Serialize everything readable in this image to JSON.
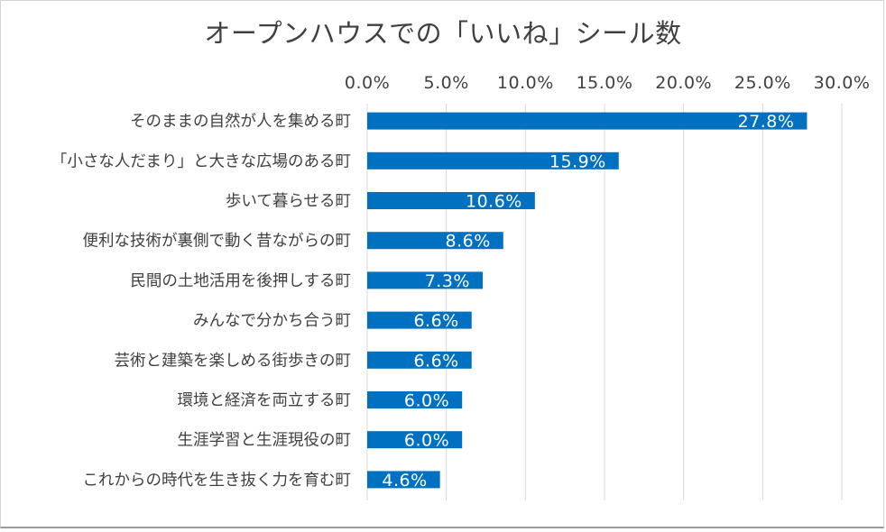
{
  "chart_data": {
    "type": "bar",
    "orientation": "horizontal",
    "title": "オープンハウスでの「いいね」シール数",
    "xlim": [
      0,
      30
    ],
    "x_ticks": [
      "0.0%",
      "5.0%",
      "10.0%",
      "15.0%",
      "20.0%",
      "25.0%",
      "30.0%"
    ],
    "x_tick_values": [
      0,
      5,
      10,
      15,
      20,
      25,
      30
    ],
    "x_axis_position": "top",
    "grid": true,
    "bar_color": "#0070c0",
    "categories": [
      "そのままの自然が人を集める町",
      "「小さな人だまり」と大きな広場のある町",
      "歩いて暮らせる町",
      "便利な技術が裏側で動く昔ながらの町",
      "民間の土地活用を後押しする町",
      "みんなで分かち合う町",
      "芸術と建築を楽しめる街歩きの町",
      "環境と経済を両立する町",
      "生涯学習と生涯現役の町",
      "これからの時代を生き抜く力を育む町"
    ],
    "values": [
      27.8,
      15.9,
      10.6,
      8.6,
      7.3,
      6.6,
      6.6,
      6.0,
      6.0,
      4.6
    ],
    "data_labels": [
      "27.8%",
      "15.9%",
      "10.6%",
      "8.6%",
      "7.3%",
      "6.6%",
      "6.6%",
      "6.0%",
      "6.0%",
      "4.6%"
    ]
  }
}
